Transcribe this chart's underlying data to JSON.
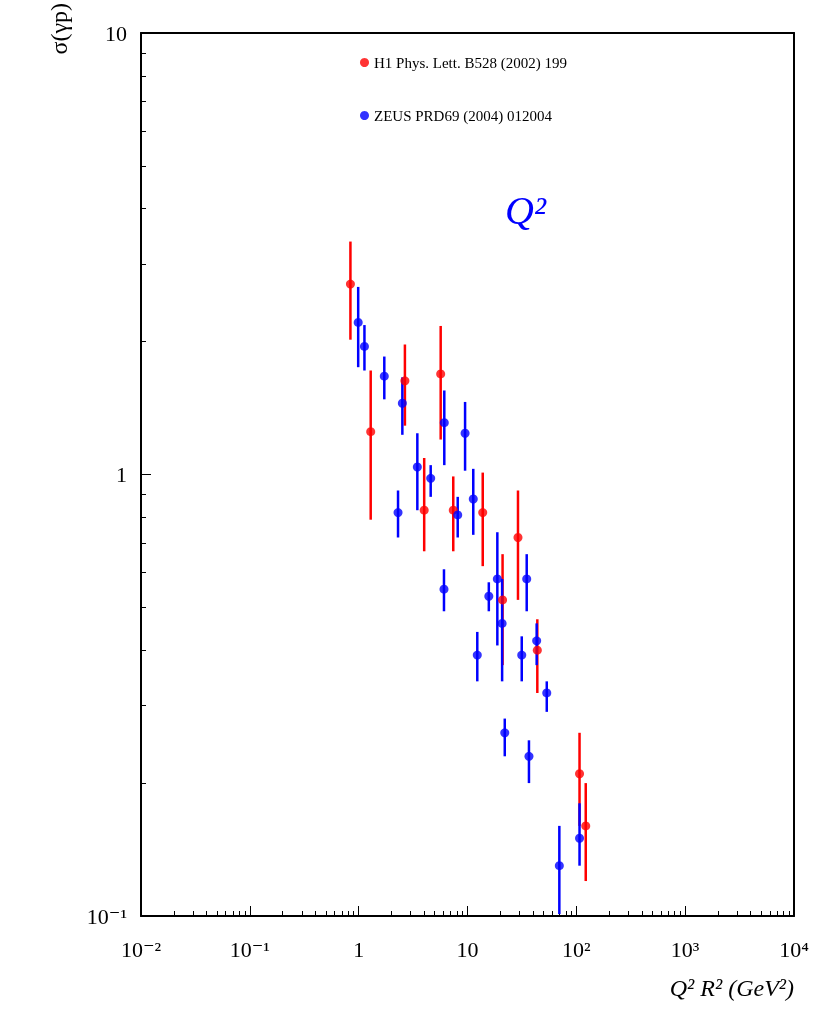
{
  "chart_data": {
    "type": "scatter",
    "xlabel": "Q² R² (GeV²)",
    "ylabel": "σ(γp)",
    "annotations": [
      "Q²"
    ],
    "log": "xy",
    "grid": false,
    "legend": "top right",
    "marker": "circle",
    "xlim": [
      0.01,
      10000
    ],
    "ylim": [
      0.1,
      10
    ],
    "xticks": [
      {
        "value": 0.01,
        "label": "10⁻²"
      },
      {
        "value": 0.1,
        "label": "10⁻¹"
      },
      1,
      10,
      {
        "value": 100,
        "label": "10²"
      },
      {
        "value": 1000,
        "label": "10³"
      },
      {
        "value": 10000,
        "label": "10⁴"
      }
    ],
    "yticks": [
      {
        "value": 0.1,
        "label": "10⁻¹"
      },
      1,
      10
    ],
    "series": [
      {
        "name": "H1 Phys. Lett. B528 (2002) 199",
        "color": "#ff0000",
        "x": [
          0.84,
          1.29,
          2.66,
          4.0,
          5.67,
          7.4,
          13.8,
          29.1,
          21,
          43.8,
          107,
          122
        ],
        "values": [
          2.7,
          1.25,
          1.63,
          0.83,
          1.69,
          0.83,
          0.82,
          0.72,
          0.52,
          0.4,
          0.21,
          0.16
        ],
        "errors": [
          [
            2.02,
            3.37
          ],
          [
            0.79,
            1.72
          ],
          [
            1.29,
            1.97
          ],
          [
            0.67,
            1.09
          ],
          [
            1.2,
            2.17
          ],
          [
            0.67,
            0.99
          ],
          [
            0.62,
            1.01
          ],
          [
            0.52,
            0.92
          ],
          [
            0.37,
            0.66
          ],
          [
            0.32,
            0.47
          ],
          [
            0.16,
            0.26
          ],
          [
            0.12,
            0.2
          ]
        ]
      },
      {
        "name": "ZEUS PRD69 (2004) 012004",
        "color": "#0000ff",
        "x": [
          0.99,
          1.13,
          1.72,
          2.52,
          2.3,
          3.46,
          4.59,
          6.12,
          8.13,
          9.5,
          11.3,
          6.08,
          12.3,
          15.7,
          18.8,
          20.8,
          22,
          31.5,
          35,
          36.7,
          43.2,
          53.5,
          69.8,
          107
        ],
        "values": [
          2.21,
          1.95,
          1.67,
          1.45,
          0.82,
          1.04,
          0.98,
          1.31,
          0.81,
          1.24,
          0.88,
          0.55,
          0.39,
          0.53,
          0.58,
          0.46,
          0.26,
          0.39,
          0.58,
          0.23,
          0.42,
          0.32,
          0.13,
          0.15
        ],
        "errors": [
          [
            1.75,
            2.66
          ],
          [
            1.72,
            2.18
          ],
          [
            1.48,
            1.85
          ],
          [
            1.23,
            1.66
          ],
          [
            0.72,
            0.92
          ],
          [
            0.83,
            1.24
          ],
          [
            0.89,
            1.05
          ],
          [
            1.05,
            1.55
          ],
          [
            0.72,
            0.89
          ],
          [
            1.02,
            1.46
          ],
          [
            0.73,
            1.03
          ],
          [
            0.49,
            0.61
          ],
          [
            0.34,
            0.44
          ],
          [
            0.49,
            0.57
          ],
          [
            0.41,
            0.74
          ],
          [
            0.34,
            0.58
          ],
          [
            0.23,
            0.28
          ],
          [
            0.34,
            0.43
          ],
          [
            0.49,
            0.66
          ],
          [
            0.2,
            0.25
          ],
          [
            0.37,
            0.46
          ],
          [
            0.29,
            0.34
          ],
          [
            0.101,
            0.16
          ],
          [
            0.13,
            0.18
          ]
        ]
      }
    ]
  }
}
